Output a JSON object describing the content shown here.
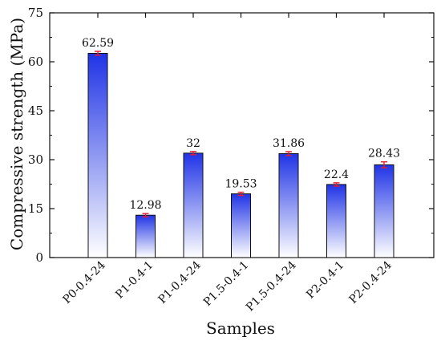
{
  "chart_data": {
    "type": "bar",
    "title": "",
    "xlabel": "Samples",
    "ylabel": "Compressive strength (MPa)",
    "ylim": [
      0,
      75
    ],
    "yticks": [
      0,
      15,
      30,
      45,
      60,
      75
    ],
    "grid": false,
    "legend": "none",
    "categories": [
      "P0-0.4-24",
      "P1-0.4-1",
      "P1-0.4-24",
      "P1.5-0.4-1",
      "P1.5-0.4-24",
      "P2-0.4-1",
      "P2-0.4-24"
    ],
    "values": [
      62.59,
      12.98,
      32,
      19.53,
      31.86,
      22.4,
      28.43
    ],
    "value_labels": [
      "62.59",
      "12.98",
      "32",
      "19.53",
      "31.86",
      "22.4",
      "28.43"
    ],
    "error": [
      0.6,
      0.5,
      0.5,
      0.5,
      0.6,
      0.5,
      0.9
    ],
    "colors": {
      "bar_top": "#1f33e6",
      "bar_bottom": "#ffffff",
      "bar_edge": "#111111",
      "error_bar": "#e8192c"
    }
  }
}
